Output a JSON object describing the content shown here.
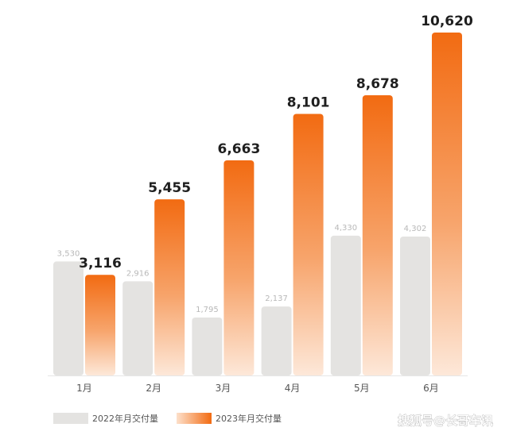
{
  "chart_data": {
    "type": "bar",
    "categories": [
      "1月",
      "2月",
      "3月",
      "4月",
      "5月",
      "6月"
    ],
    "series": [
      {
        "name": "2022年月交付量",
        "values": [
          3530,
          2916,
          1795,
          2137,
          4330,
          4302
        ],
        "labels": [
          "3,530",
          "2,916",
          "1,795",
          "2,137",
          "4,330",
          "4,302"
        ],
        "color": "#e4e3e1"
      },
      {
        "name": "2023年月交付量",
        "values": [
          3116,
          5455,
          6663,
          8101,
          8678,
          10620
        ],
        "labels": [
          "3,116",
          "5,455",
          "6,663",
          "8,101",
          "8,678",
          "10,620"
        ],
        "color": "#f26b12"
      }
    ],
    "title": "",
    "xlabel": "",
    "ylabel": "",
    "ylim": [
      0,
      10620
    ],
    "grid": false,
    "legend": "bottom-left"
  },
  "watermark": "搜狐号@长哥车讯"
}
